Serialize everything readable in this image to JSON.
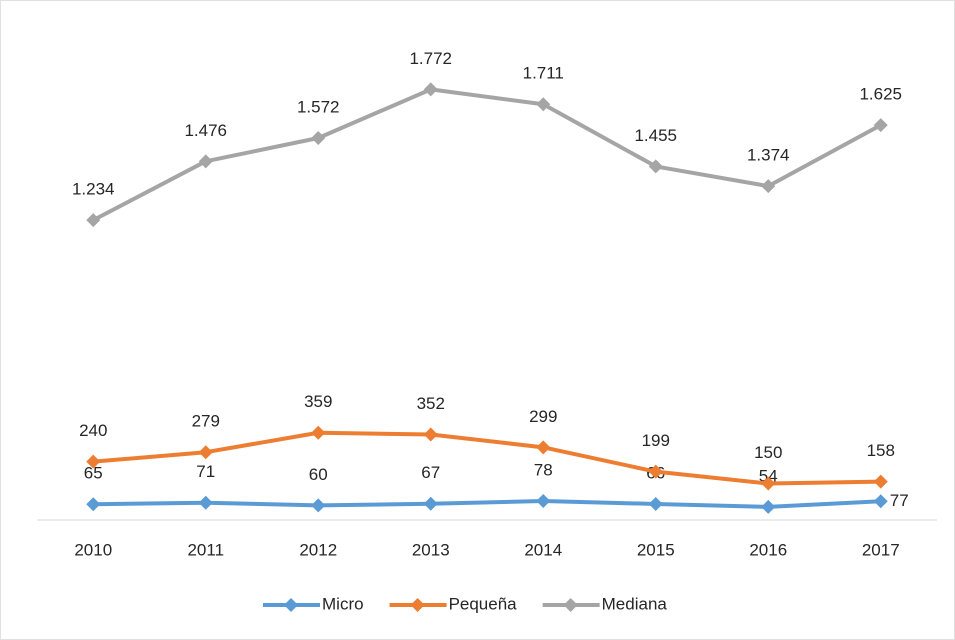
{
  "chart_data": {
    "type": "line",
    "categories": [
      "2010",
      "2011",
      "2012",
      "2013",
      "2014",
      "2015",
      "2016",
      "2017"
    ],
    "series": [
      {
        "name": "Micro",
        "color": "#5b9bd5",
        "values": [
          65,
          71,
          60,
          67,
          78,
          66,
          54,
          77
        ]
      },
      {
        "name": "Pequeña",
        "color": "#ed7d31",
        "values": [
          240,
          279,
          359,
          352,
          299,
          199,
          150,
          158
        ]
      },
      {
        "name": "Mediana",
        "color": "#a5a5a5",
        "values": [
          1234,
          1476,
          1572,
          1772,
          1711,
          1455,
          1374,
          1625
        ],
        "value_labels": [
          "1.234",
          "1.476",
          "1.572",
          "1.772",
          "1.711",
          "1.455",
          "1.374",
          "1.625"
        ]
      }
    ],
    "ylim": [
      0,
      2000
    ],
    "legend": "bottom"
  }
}
